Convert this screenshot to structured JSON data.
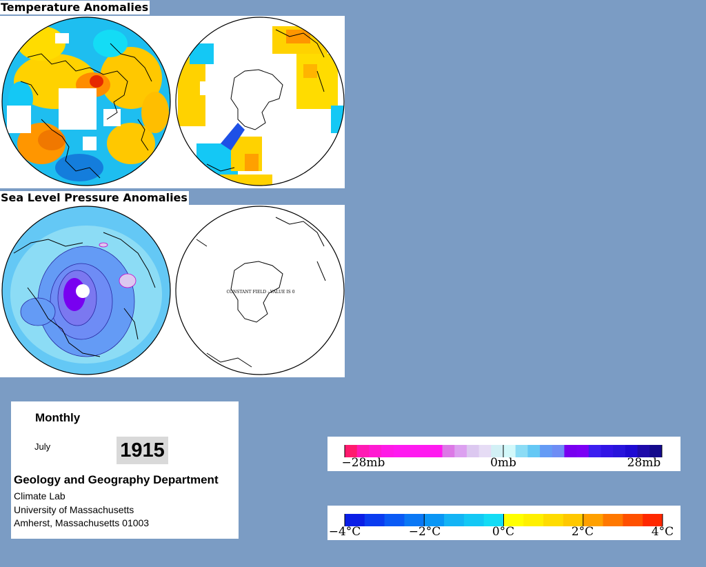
{
  "temperature": {
    "title": "Temperature Anomalies"
  },
  "pressure": {
    "title": "Sea Level Pressure Anomalies",
    "constant_field_note": "CONSTANT FIELD - VALUE IS 0"
  },
  "info": {
    "period_type": "Monthly",
    "month": "July",
    "year": "1915",
    "department": "Geology and Geography Department",
    "lab": "Climate Lab",
    "university": "University of Massachusetts",
    "address": "Amherst, Massachusetts 01003"
  },
  "pressure_scale": {
    "unit": "mb",
    "labels": [
      "−28mb",
      "0mb",
      "28mb"
    ],
    "colors": [
      "#ff1a6e",
      "#ff1ab4",
      "#ff1ad2",
      "#ff1ae6",
      "#ff1af0",
      "#ff1af0",
      "#ff1af0",
      "#ff1af0",
      "#dc78e6",
      "#dca0f0",
      "#dcc8f0",
      "#e6dcf5",
      "#d2f0f5",
      "#d2f8fa",
      "#8cdcf5",
      "#64c8f5",
      "#649bf5",
      "#6e8cf5",
      "#7800f0",
      "#7b00f5",
      "#3c1ef0",
      "#3214e6",
      "#2814dc",
      "#1e0ad2",
      "#1e0aaa",
      "#140a8c"
    ]
  },
  "temperature_scale": {
    "unit": "°C",
    "labels": [
      "−4°C",
      "−2°C",
      "0°C",
      "2°C",
      "4°C"
    ],
    "colors": [
      "#0a1ee6",
      "#0a3cf0",
      "#0a5af5",
      "#0a78f5",
      "#0a96f5",
      "#14b4f5",
      "#14c8f5",
      "#14dcf5",
      "#ffff00",
      "#fff000",
      "#ffdc00",
      "#ffc800",
      "#ffa000",
      "#ff7800",
      "#ff5000",
      "#ff2800"
    ]
  }
}
